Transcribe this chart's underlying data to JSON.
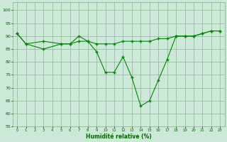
{
  "xlabel": "Humidité relative (%)",
  "background_color": "#cce8d8",
  "grid_color": "#99bb99",
  "line_color": "#008800",
  "xlim": [
    -0.5,
    23.5
  ],
  "ylim": [
    55,
    103
  ],
  "yticks": [
    55,
    60,
    65,
    70,
    75,
    80,
    85,
    90,
    95,
    100
  ],
  "xticks": [
    0,
    1,
    2,
    3,
    4,
    5,
    6,
    7,
    8,
    9,
    10,
    11,
    12,
    13,
    14,
    15,
    16,
    17,
    18,
    19,
    20,
    21,
    22,
    23
  ],
  "s1_x": [
    0,
    1,
    3,
    5,
    6,
    7,
    8,
    9,
    10,
    11,
    12,
    13,
    14,
    15,
    16,
    17,
    18,
    19,
    20,
    21,
    22,
    23
  ],
  "s1_y": [
    91,
    87,
    88,
    87,
    87,
    88,
    88,
    87,
    87,
    87,
    88,
    88,
    88,
    88,
    89,
    89,
    90,
    90,
    90,
    91,
    92,
    92
  ],
  "s2_x": [
    0,
    1,
    3,
    5,
    6,
    7,
    8,
    9,
    10,
    11,
    12,
    13,
    14,
    15,
    16,
    17,
    18,
    19,
    20,
    21,
    22,
    23
  ],
  "s2_y": [
    91,
    87,
    85,
    87,
    87,
    90,
    88,
    84,
    76,
    76,
    82,
    74,
    63,
    65,
    73,
    81,
    90,
    90,
    90,
    91,
    92,
    92
  ]
}
